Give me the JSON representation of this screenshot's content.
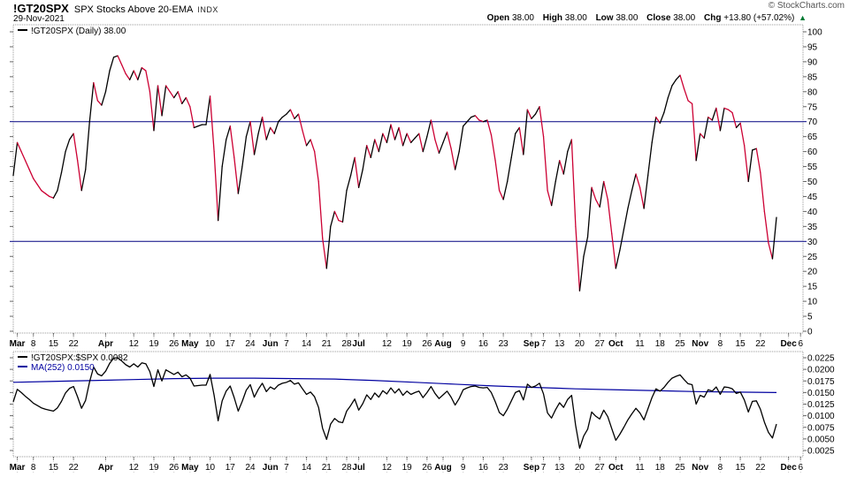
{
  "header": {
    "symbol": "!GT20SPX",
    "description": "SPX Stocks Above 20-EMA",
    "exchange": "INDX",
    "date": "29-Nov-2021",
    "copyright": "© StockCharts.com",
    "quote": {
      "open_label": "Open",
      "open": "38.00",
      "high_label": "High",
      "high": "38.00",
      "low_label": "Low",
      "low": "38.00",
      "close_label": "Close",
      "close": "38.00",
      "chg_label": "Chg",
      "chg": "+13.80 (+57.02%)",
      "direction_icon": "▲"
    }
  },
  "legends": {
    "main": "!GT20SPX (Daily) 38.00",
    "ratio": "!GT20SPX:$SPX 0.0082",
    "ma": "MA(252) 0.0150"
  },
  "colors": {
    "up": "#000000",
    "down": "#cc0033",
    "ma": "#0000a0",
    "hline": "#000080",
    "border": "#999999",
    "tick": "#666666",
    "grid_dot": "#c8c8c8",
    "arrow_up": "#007a33",
    "copyright": "#555555"
  },
  "x_axis_labels": [
    {
      "t": "Mar",
      "i": 1,
      "b": 1
    },
    {
      "t": "8",
      "i": 5
    },
    {
      "t": "15",
      "i": 10
    },
    {
      "t": "22",
      "i": 15
    },
    {
      "t": "Apr",
      "i": 23,
      "b": 1
    },
    {
      "t": "12",
      "i": 30
    },
    {
      "t": "19",
      "i": 35
    },
    {
      "t": "26",
      "i": 40
    },
    {
      "t": "May",
      "i": 44,
      "b": 1
    },
    {
      "t": "10",
      "i": 49
    },
    {
      "t": "17",
      "i": 54
    },
    {
      "t": "24",
      "i": 59
    },
    {
      "t": "Jun",
      "i": 64,
      "b": 1
    },
    {
      "t": "7",
      "i": 68
    },
    {
      "t": "14",
      "i": 73
    },
    {
      "t": "21",
      "i": 78
    },
    {
      "t": "28",
      "i": 83
    },
    {
      "t": "Jul",
      "i": 86,
      "b": 1
    },
    {
      "t": "12",
      "i": 93
    },
    {
      "t": "19",
      "i": 98
    },
    {
      "t": "26",
      "i": 103
    },
    {
      "t": "Aug",
      "i": 107,
      "b": 1
    },
    {
      "t": "9",
      "i": 112
    },
    {
      "t": "16",
      "i": 117
    },
    {
      "t": "23",
      "i": 122
    },
    {
      "t": "Sep",
      "i": 129,
      "b": 1
    },
    {
      "t": "7",
      "i": 132
    },
    {
      "t": "13",
      "i": 136
    },
    {
      "t": "20",
      "i": 141
    },
    {
      "t": "27",
      "i": 146
    },
    {
      "t": "Oct",
      "i": 150,
      "b": 1
    },
    {
      "t": "11",
      "i": 156
    },
    {
      "t": "18",
      "i": 161
    },
    {
      "t": "25",
      "i": 166
    },
    {
      "t": "Nov",
      "i": 171,
      "b": 1
    },
    {
      "t": "8",
      "i": 176
    },
    {
      "t": "15",
      "i": 181
    },
    {
      "t": "22",
      "i": 186
    },
    {
      "t": "Dec",
      "i": 193,
      "b": 1
    },
    {
      "t": "6",
      "i": 196
    }
  ],
  "chart_data": [
    {
      "type": "line",
      "title": "!GT20SPX (Daily)",
      "last_value": 38.0,
      "ylim": [
        0,
        100
      ],
      "ytick_step": 5,
      "hlines": [
        70,
        30
      ],
      "grid": false,
      "legend_position": "top-left",
      "values": [
        52,
        63,
        60,
        57,
        54,
        51,
        49,
        47,
        46,
        45,
        44.5,
        47,
        53,
        60,
        64,
        66,
        57,
        47,
        54,
        70,
        83,
        77,
        75.5,
        80,
        87,
        91.5,
        92,
        89,
        86,
        84,
        87,
        84,
        88,
        87,
        80,
        67,
        82,
        72,
        82,
        80,
        78,
        80,
        76,
        78,
        75,
        68,
        68.5,
        69,
        69,
        78.5,
        60,
        37,
        55,
        64,
        68.5,
        58,
        46,
        55,
        65,
        70,
        59,
        66,
        71.5,
        64,
        68,
        66,
        70,
        71.5,
        72.5,
        74,
        71,
        72.5,
        67,
        62,
        64,
        60,
        50,
        31,
        21,
        35,
        40,
        37,
        36.5,
        47,
        52,
        58,
        48,
        54,
        62,
        58,
        64,
        60,
        66,
        63,
        69,
        64,
        68,
        62,
        66,
        63,
        64.5,
        66,
        60,
        65,
        70.5,
        64,
        59.5,
        63,
        66.5,
        61,
        54,
        60,
        68.5,
        70,
        71.5,
        72,
        70.5,
        70,
        70.5,
        65.5,
        57,
        47,
        44,
        50,
        58,
        66,
        68,
        59,
        74,
        71,
        72.5,
        75,
        65,
        47,
        42,
        50,
        57,
        52.5,
        60,
        64,
        35,
        13.5,
        25,
        31.5,
        48,
        44,
        41.5,
        50,
        44,
        32.5,
        21,
        27,
        34,
        41,
        47,
        52.5,
        48,
        41,
        52,
        63,
        71.5,
        69.5,
        73,
        78,
        82,
        84,
        85.5,
        81,
        77,
        76,
        57,
        66,
        64.5,
        71.5,
        70.5,
        74.5,
        67,
        74.5,
        74,
        73,
        68,
        69.5,
        62,
        50,
        60.5,
        61,
        53,
        40,
        29.5,
        24.2,
        38
      ]
    },
    {
      "type": "line",
      "title": "!GT20SPX:$SPX",
      "last_value": 0.0082,
      "ma_label": "MA(252)",
      "ma_last_value": 0.015,
      "ylim": [
        0.0012,
        0.0238
      ],
      "yticks": [
        0.0225,
        0.02,
        0.0175,
        0.015,
        0.0125,
        0.01,
        0.0075,
        0.005,
        0.0025
      ],
      "scale": 0.0001,
      "values_x10000": [
        130,
        157,
        150,
        142,
        135,
        127,
        122,
        117,
        114,
        112,
        110,
        117,
        131,
        149,
        159,
        163,
        141,
        116,
        133,
        173,
        205,
        190,
        186,
        196,
        213,
        224,
        225,
        218,
        210,
        205,
        212,
        205,
        214,
        212,
        195,
        163,
        199,
        175,
        199,
        194,
        189,
        194,
        184,
        188,
        181,
        164,
        165,
        166,
        166,
        189,
        144,
        89,
        132,
        153,
        164,
        139,
        110,
        131,
        155,
        167,
        140,
        157,
        170,
        152,
        162,
        157,
        166,
        170,
        172,
        176,
        168,
        171,
        158,
        146,
        151,
        141,
        118,
        73,
        49,
        82,
        94,
        87,
        85,
        110,
        122,
        136,
        112,
        126,
        145,
        135,
        149,
        140,
        154,
        147,
        160,
        149,
        158,
        144,
        153,
        146,
        150,
        153,
        139,
        150,
        163,
        148,
        137,
        145,
        153,
        140,
        123,
        137,
        156,
        160,
        163,
        164,
        161,
        160,
        161,
        150,
        130,
        107,
        100,
        114,
        132,
        150,
        154,
        134,
        168,
        161,
        164,
        170,
        147,
        106,
        95,
        113,
        128,
        118,
        135,
        144,
        79,
        30,
        56,
        71,
        108,
        99,
        93,
        112,
        98,
        72,
        47,
        60,
        75,
        91,
        104,
        116,
        106,
        91,
        115,
        139,
        158,
        153,
        161,
        172,
        181,
        185,
        188,
        178,
        169,
        167,
        125,
        144,
        140,
        156,
        153,
        162,
        146,
        162,
        161,
        158,
        148,
        151,
        134,
        108,
        131,
        132,
        114,
        86,
        64,
        52,
        82
      ],
      "ma252_x10000": {
        "idx_step": 10,
        "values": [
          172,
          174,
          176,
          178,
          180,
          181,
          181,
          180,
          179,
          176,
          172,
          168,
          164,
          161,
          158,
          156,
          154,
          152,
          151,
          150
        ]
      }
    }
  ]
}
